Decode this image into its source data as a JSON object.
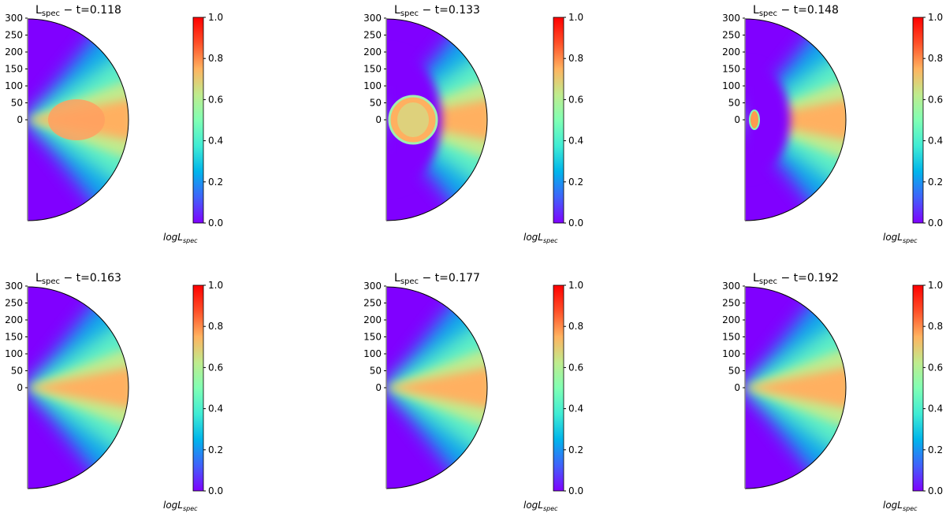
{
  "chart_data": {
    "type": "heatmap",
    "colormap": [
      "#8000ff",
      "#4062fa",
      "#00b5eb",
      "#40ecd4",
      "#80ffb4",
      "#c0eb8d",
      "#ffb360",
      "#ff4f28",
      "#ff0000"
    ],
    "colorbar": {
      "label_main": "log",
      "label_sub": "spec",
      "label_base": "L",
      "range": [
        0,
        1
      ],
      "ticks": [
        "0.0",
        "0.2",
        "0.4",
        "0.6",
        "0.8",
        "1.0"
      ]
    },
    "y_ticks": [
      "300",
      "250",
      "200",
      "150",
      "100",
      "50",
      "0"
    ],
    "panels": [
      {
        "title_base": "L",
        "title_sub": "spec",
        "title_rest": " − t=0.118",
        "t": 0.118
      },
      {
        "title_base": "L",
        "title_sub": "spec",
        "title_rest": " − t=0.133",
        "t": 0.133
      },
      {
        "title_base": "L",
        "title_sub": "spec",
        "title_rest": " − t=0.148",
        "t": 0.148
      },
      {
        "title_base": "L",
        "title_sub": "spec",
        "title_rest": " − t=0.163",
        "t": 0.163
      },
      {
        "title_base": "L",
        "title_sub": "spec",
        "title_rest": " − t=0.177",
        "t": 0.177
      },
      {
        "title_base": "L",
        "title_sub": "spec",
        "title_rest": " − t=0.192",
        "t": 0.192
      }
    ]
  }
}
